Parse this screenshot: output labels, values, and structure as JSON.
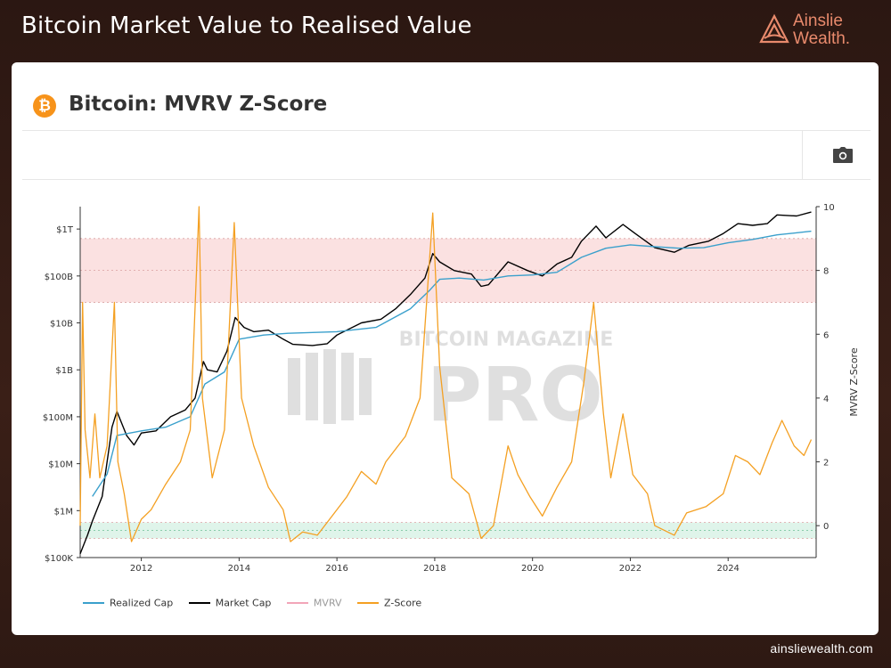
{
  "header": {
    "title": "Bitcoin Market Value to Realised Value",
    "brand_line1": "Ainslie",
    "brand_line2": "Wealth.",
    "brand_color": "#e88a6c"
  },
  "card": {
    "icon": "bitcoin-icon",
    "icon_color": "#f7931a",
    "title": "Bitcoin: MVRV Z-Score",
    "toolbar_icon": "camera-icon"
  },
  "watermark": {
    "line1": "BITCOIN MAGAZINE",
    "line2": "PRO"
  },
  "footer": {
    "url": "ainsliewealth.com"
  },
  "chart_data": {
    "type": "line",
    "x_ticks": [
      "2012",
      "2014",
      "2016",
      "2018",
      "2020",
      "2022",
      "2024"
    ],
    "x_range": [
      2010.75,
      2025.8
    ],
    "left_axis": {
      "scale": "log",
      "range": [
        100000,
        3000000000000
      ],
      "ticks": [
        {
          "value": 100000,
          "label": "$100K"
        },
        {
          "value": 1000000,
          "label": "$1M"
        },
        {
          "value": 10000000,
          "label": "$10M"
        },
        {
          "value": 100000000,
          "label": "$100M"
        },
        {
          "value": 1000000000,
          "label": "$1B"
        },
        {
          "value": 10000000000,
          "label": "$10B"
        },
        {
          "value": 100000000000,
          "label": "$100B"
        },
        {
          "value": 1000000000000,
          "label": "$1T"
        }
      ]
    },
    "right_axis": {
      "label": "MVRV Z-Score",
      "range": [
        -1,
        10
      ],
      "ticks": [
        0,
        2,
        4,
        6,
        8,
        10
      ]
    },
    "bands": [
      {
        "name": "overvalued",
        "from": 7,
        "to": 9,
        "color": "#fbe1e1"
      },
      {
        "name": "undervalued",
        "from": -0.4,
        "to": 0.1,
        "color": "#dff4ea"
      }
    ],
    "legend": [
      {
        "name": "Realized Cap",
        "color": "#3aa0cc"
      },
      {
        "name": "Market Cap",
        "color": "#000000"
      },
      {
        "name": "MVRV",
        "color": "#f2a5b8"
      },
      {
        "name": "Z-Score",
        "color": "#f4a022"
      }
    ],
    "series": [
      {
        "name": "Market Cap",
        "axis": "left",
        "color": "#000000",
        "points": [
          [
            2010.75,
            120000
          ],
          [
            2010.9,
            300000
          ],
          [
            2011.0,
            600000
          ],
          [
            2011.2,
            2000000
          ],
          [
            2011.4,
            60000000
          ],
          [
            2011.5,
            130000000
          ],
          [
            2011.7,
            40000000
          ],
          [
            2011.85,
            25000000
          ],
          [
            2012.0,
            45000000
          ],
          [
            2012.3,
            50000000
          ],
          [
            2012.6,
            100000000
          ],
          [
            2012.9,
            140000000
          ],
          [
            2013.1,
            250000000
          ],
          [
            2013.27,
            1500000000
          ],
          [
            2013.35,
            1000000000
          ],
          [
            2013.55,
            900000000
          ],
          [
            2013.75,
            2500000000
          ],
          [
            2013.92,
            13000000000
          ],
          [
            2014.1,
            8000000000
          ],
          [
            2014.3,
            6500000000
          ],
          [
            2014.6,
            7000000000
          ],
          [
            2014.9,
            4500000000
          ],
          [
            2015.1,
            3500000000
          ],
          [
            2015.5,
            3300000000
          ],
          [
            2015.8,
            3600000000
          ],
          [
            2016.0,
            5500000000
          ],
          [
            2016.5,
            10000000000
          ],
          [
            2016.9,
            12000000000
          ],
          [
            2017.2,
            20000000000
          ],
          [
            2017.5,
            40000000000
          ],
          [
            2017.8,
            90000000000
          ],
          [
            2017.96,
            300000000000
          ],
          [
            2018.1,
            200000000000
          ],
          [
            2018.4,
            130000000000
          ],
          [
            2018.75,
            110000000000
          ],
          [
            2018.95,
            60000000000
          ],
          [
            2019.1,
            65000000000
          ],
          [
            2019.5,
            200000000000
          ],
          [
            2019.9,
            130000000000
          ],
          [
            2020.2,
            100000000000
          ],
          [
            2020.5,
            180000000000
          ],
          [
            2020.8,
            250000000000
          ],
          [
            2021.0,
            550000000000
          ],
          [
            2021.3,
            1150000000000
          ],
          [
            2021.5,
            650000000000
          ],
          [
            2021.85,
            1250000000000
          ],
          [
            2022.1,
            800000000000
          ],
          [
            2022.5,
            400000000000
          ],
          [
            2022.9,
            320000000000
          ],
          [
            2023.2,
            450000000000
          ],
          [
            2023.6,
            550000000000
          ],
          [
            2023.9,
            800000000000
          ],
          [
            2024.2,
            1300000000000
          ],
          [
            2024.5,
            1200000000000
          ],
          [
            2024.8,
            1300000000000
          ],
          [
            2025.0,
            2000000000000
          ],
          [
            2025.4,
            1900000000000
          ],
          [
            2025.7,
            2300000000000
          ]
        ]
      },
      {
        "name": "Realized Cap",
        "axis": "left",
        "color": "#3aa0cc",
        "points": [
          [
            2011.0,
            2000000
          ],
          [
            2011.3,
            6000000
          ],
          [
            2011.5,
            40000000
          ],
          [
            2012.0,
            50000000
          ],
          [
            2012.5,
            60000000
          ],
          [
            2013.0,
            100000000
          ],
          [
            2013.3,
            500000000
          ],
          [
            2013.7,
            900000000
          ],
          [
            2014.0,
            4500000000
          ],
          [
            2014.5,
            5500000000
          ],
          [
            2015.0,
            6000000000
          ],
          [
            2016.0,
            6500000000
          ],
          [
            2016.8,
            8000000000
          ],
          [
            2017.5,
            20000000000
          ],
          [
            2017.9,
            50000000000
          ],
          [
            2018.1,
            85000000000
          ],
          [
            2018.5,
            90000000000
          ],
          [
            2019.0,
            82000000000
          ],
          [
            2019.5,
            100000000000
          ],
          [
            2020.0,
            105000000000
          ],
          [
            2020.5,
            120000000000
          ],
          [
            2021.0,
            250000000000
          ],
          [
            2021.5,
            390000000000
          ],
          [
            2022.0,
            460000000000
          ],
          [
            2022.5,
            420000000000
          ],
          [
            2023.0,
            390000000000
          ],
          [
            2023.5,
            400000000000
          ],
          [
            2024.0,
            510000000000
          ],
          [
            2024.5,
            600000000000
          ],
          [
            2025.0,
            750000000000
          ],
          [
            2025.7,
            900000000000
          ]
        ]
      },
      {
        "name": "Z-Score",
        "axis": "right",
        "color": "#f4a022",
        "points": [
          [
            2010.75,
            0.0
          ],
          [
            2010.8,
            7.0
          ],
          [
            2010.85,
            3.0
          ],
          [
            2010.95,
            1.5
          ],
          [
            2011.05,
            3.5
          ],
          [
            2011.15,
            1.5
          ],
          [
            2011.3,
            2.5
          ],
          [
            2011.45,
            7.0
          ],
          [
            2011.52,
            2.0
          ],
          [
            2011.65,
            1.0
          ],
          [
            2011.8,
            -0.5
          ],
          [
            2012.0,
            0.2
          ],
          [
            2012.2,
            0.5
          ],
          [
            2012.5,
            1.3
          ],
          [
            2012.8,
            2.0
          ],
          [
            2013.0,
            3.0
          ],
          [
            2013.18,
            10.0
          ],
          [
            2013.25,
            4.0
          ],
          [
            2013.45,
            1.5
          ],
          [
            2013.7,
            3.0
          ],
          [
            2013.9,
            9.5
          ],
          [
            2014.05,
            4.0
          ],
          [
            2014.3,
            2.5
          ],
          [
            2014.6,
            1.2
          ],
          [
            2014.9,
            0.5
          ],
          [
            2015.05,
            -0.5
          ],
          [
            2015.3,
            -0.2
          ],
          [
            2015.6,
            -0.3
          ],
          [
            2015.9,
            0.3
          ],
          [
            2016.2,
            0.9
          ],
          [
            2016.5,
            1.7
          ],
          [
            2016.8,
            1.3
          ],
          [
            2017.0,
            2.0
          ],
          [
            2017.4,
            2.8
          ],
          [
            2017.7,
            4.0
          ],
          [
            2017.96,
            9.8
          ],
          [
            2018.1,
            5.0
          ],
          [
            2018.35,
            1.5
          ],
          [
            2018.7,
            1.0
          ],
          [
            2018.95,
            -0.4
          ],
          [
            2019.2,
            0.0
          ],
          [
            2019.5,
            2.5
          ],
          [
            2019.7,
            1.6
          ],
          [
            2019.95,
            0.9
          ],
          [
            2020.2,
            0.3
          ],
          [
            2020.5,
            1.2
          ],
          [
            2020.8,
            2.0
          ],
          [
            2021.05,
            4.5
          ],
          [
            2021.25,
            7.0
          ],
          [
            2021.45,
            3.5
          ],
          [
            2021.6,
            1.5
          ],
          [
            2021.85,
            3.5
          ],
          [
            2022.05,
            1.6
          ],
          [
            2022.35,
            1.0
          ],
          [
            2022.5,
            0.0
          ],
          [
            2022.9,
            -0.3
          ],
          [
            2023.15,
            0.4
          ],
          [
            2023.55,
            0.6
          ],
          [
            2023.9,
            1.0
          ],
          [
            2024.15,
            2.2
          ],
          [
            2024.4,
            2.0
          ],
          [
            2024.65,
            1.6
          ],
          [
            2024.9,
            2.6
          ],
          [
            2025.1,
            3.3
          ],
          [
            2025.35,
            2.5
          ],
          [
            2025.55,
            2.2
          ],
          [
            2025.7,
            2.7
          ]
        ]
      }
    ]
  }
}
